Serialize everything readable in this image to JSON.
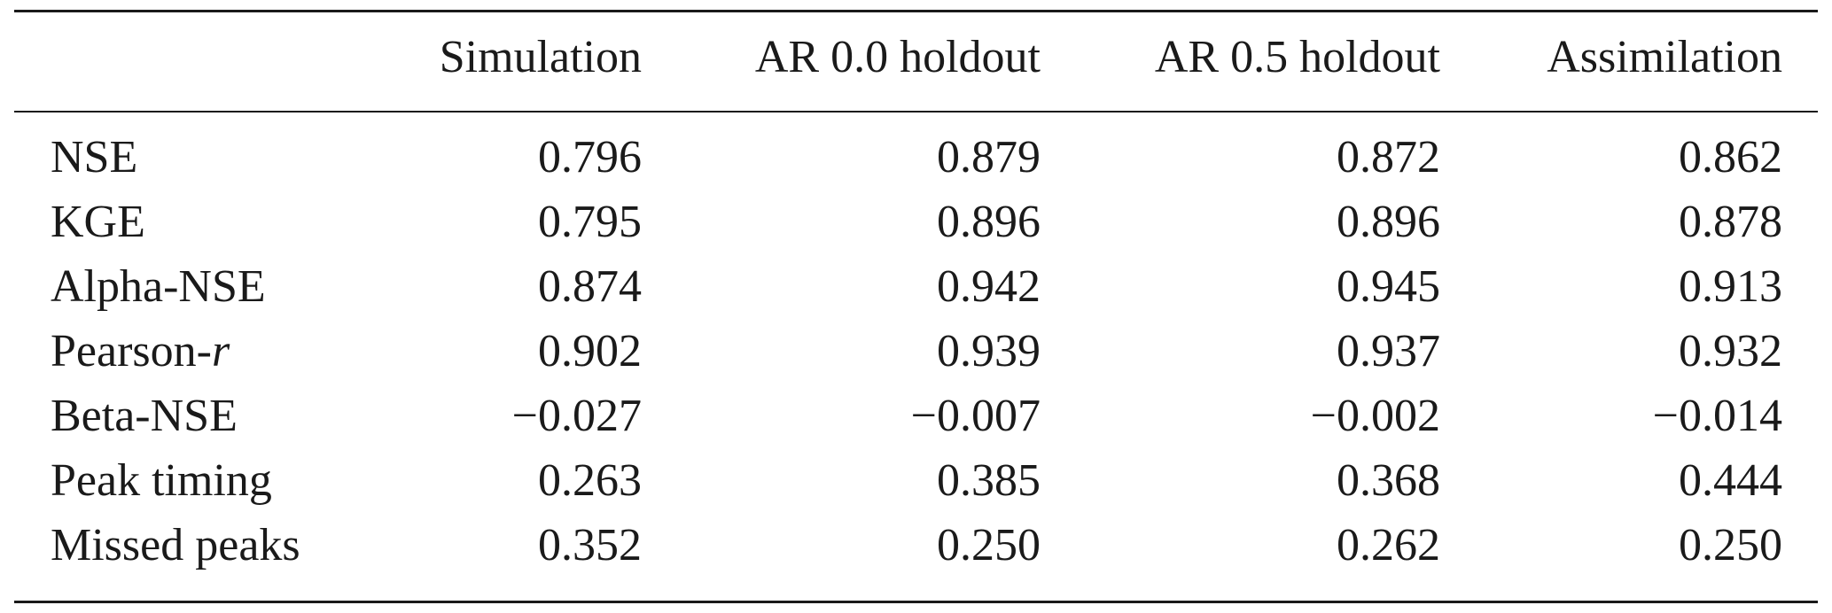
{
  "table": {
    "columns": [
      "Simulation",
      "AR 0.0 holdout",
      "AR 0.5 holdout",
      "Assimilation"
    ],
    "rows": [
      {
        "metric": "NSE",
        "values": [
          "0.796",
          "0.879",
          "0.872",
          "0.862"
        ]
      },
      {
        "metric": "KGE",
        "values": [
          "0.795",
          "0.896",
          "0.896",
          "0.878"
        ]
      },
      {
        "metric": "Alpha-NSE",
        "values": [
          "0.874",
          "0.942",
          "0.945",
          "0.913"
        ]
      },
      {
        "metric_prefix": "Pearson-",
        "metric_italic": "r",
        "values": [
          "0.902",
          "0.939",
          "0.937",
          "0.932"
        ]
      },
      {
        "metric": "Beta-NSE",
        "values": [
          "−0.027",
          "−0.007",
          "−0.002",
          "−0.014"
        ]
      },
      {
        "metric": "Peak timing",
        "values": [
          "0.263",
          "0.385",
          "0.368",
          "0.444"
        ]
      },
      {
        "metric": "Missed peaks",
        "values": [
          "0.352",
          "0.250",
          "0.262",
          "0.250"
        ]
      }
    ]
  }
}
